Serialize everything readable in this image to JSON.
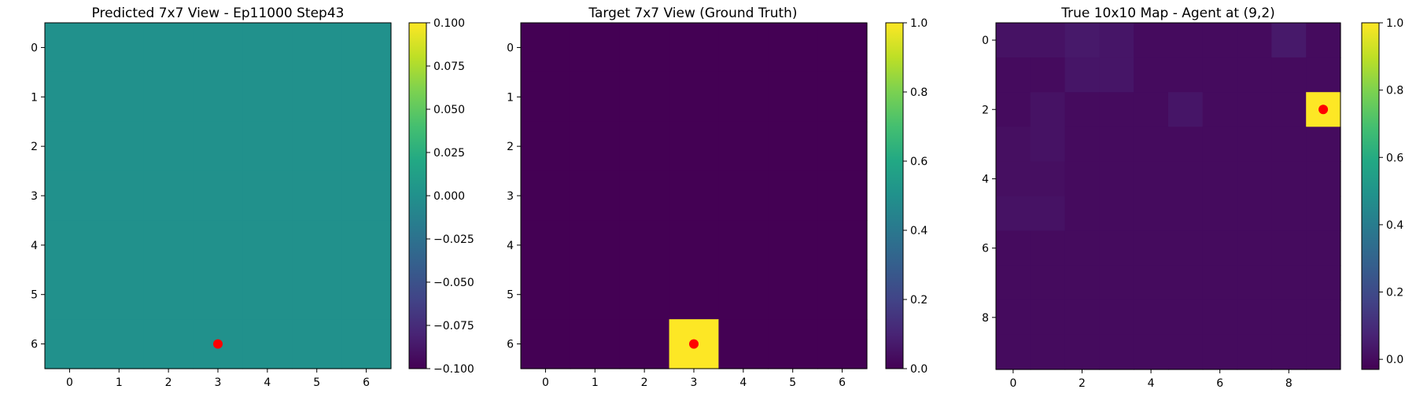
{
  "chart_data": [
    {
      "type": "heatmap",
      "title": "Predicted 7x7 View - Ep11000 Step43",
      "rows": 7,
      "cols": 7,
      "values": [
        [
          0,
          0,
          0,
          0,
          0,
          0,
          0
        ],
        [
          0,
          0,
          0,
          0,
          0,
          0,
          0
        ],
        [
          0,
          0,
          0,
          0,
          0,
          0,
          0
        ],
        [
          0,
          0,
          0,
          0,
          0,
          0,
          0
        ],
        [
          0,
          0,
          0,
          0,
          0,
          0,
          0
        ],
        [
          0,
          0,
          0,
          0,
          0,
          0,
          0
        ],
        [
          0,
          0,
          0,
          0,
          0,
          0,
          0
        ]
      ],
      "xticks": [
        0,
        1,
        2,
        3,
        4,
        5,
        6
      ],
      "yticks": [
        0,
        1,
        2,
        3,
        4,
        5,
        6
      ],
      "vmin": -0.1,
      "vmax": 0.1,
      "colorbar_ticks": [
        "0.100",
        "0.075",
        "0.050",
        "0.025",
        "0.000",
        "−0.025",
        "−0.050",
        "−0.075",
        "−0.100"
      ],
      "colorbar_tick_values": [
        0.1,
        0.075,
        0.05,
        0.025,
        0,
        -0.025,
        -0.05,
        -0.075,
        -0.1
      ],
      "marker": {
        "x": 3,
        "y": 6,
        "color": "#ff0000"
      },
      "colormap": "viridis"
    },
    {
      "type": "heatmap",
      "title": "Target 7x7 View (Ground Truth)",
      "rows": 7,
      "cols": 7,
      "values": [
        [
          0,
          0,
          0,
          0,
          0,
          0,
          0
        ],
        [
          0,
          0,
          0,
          0,
          0,
          0,
          0
        ],
        [
          0,
          0,
          0,
          0,
          0,
          0,
          0
        ],
        [
          0,
          0,
          0,
          0,
          0,
          0,
          0
        ],
        [
          0,
          0,
          0,
          0,
          0,
          0,
          0
        ],
        [
          0,
          0,
          0,
          0,
          0,
          0,
          0
        ],
        [
          0,
          0,
          0,
          1,
          0,
          0,
          0
        ]
      ],
      "xticks": [
        0,
        1,
        2,
        3,
        4,
        5,
        6
      ],
      "yticks": [
        0,
        1,
        2,
        3,
        4,
        5,
        6
      ],
      "vmin": 0,
      "vmax": 1,
      "colorbar_ticks": [
        "1.0",
        "0.8",
        "0.6",
        "0.4",
        "0.2",
        "0.0"
      ],
      "colorbar_tick_values": [
        1,
        0.8,
        0.6,
        0.4,
        0.2,
        0
      ],
      "marker": {
        "x": 3,
        "y": 6,
        "color": "#ff0000"
      },
      "colormap": "viridis"
    },
    {
      "type": "heatmap",
      "title": "True 10x10 Map - Agent at (9,2)",
      "rows": 10,
      "cols": 10,
      "values": [
        [
          0.02,
          0.02,
          0.04,
          0.03,
          0,
          0,
          0,
          0,
          0.04,
          0
        ],
        [
          0,
          0,
          0.03,
          0.03,
          0,
          0,
          0,
          0,
          0,
          0
        ],
        [
          0,
          0.02,
          0,
          0,
          0,
          0.03,
          0,
          0,
          0,
          1
        ],
        [
          0.01,
          0.02,
          0,
          0,
          0,
          0,
          0,
          0,
          0,
          0
        ],
        [
          0.01,
          0.01,
          0,
          0,
          0,
          0,
          0,
          0,
          0,
          0
        ],
        [
          0.02,
          0.02,
          0,
          0,
          0,
          0,
          0,
          0,
          0,
          0
        ],
        [
          0,
          0,
          0,
          0,
          0,
          0,
          0,
          0,
          0,
          0
        ],
        [
          0,
          0,
          0,
          0,
          0,
          0,
          0,
          0,
          0,
          0
        ],
        [
          0,
          0,
          0,
          0,
          0,
          0,
          0,
          0,
          0,
          0
        ],
        [
          0,
          0,
          0,
          0,
          0,
          0,
          0,
          0,
          0,
          0
        ]
      ],
      "xticks": [
        0,
        2,
        4,
        6,
        8
      ],
      "yticks": [
        0,
        2,
        4,
        6,
        8
      ],
      "vmin": -0.03,
      "vmax": 1,
      "colorbar_ticks": [
        "1.0",
        "0.8",
        "0.6",
        "0.4",
        "0.2",
        "0.0"
      ],
      "colorbar_tick_values": [
        1,
        0.8,
        0.6,
        0.4,
        0.2,
        0
      ],
      "marker": {
        "x": 9,
        "y": 2,
        "color": "#ff0000"
      },
      "colormap": "viridis"
    }
  ]
}
